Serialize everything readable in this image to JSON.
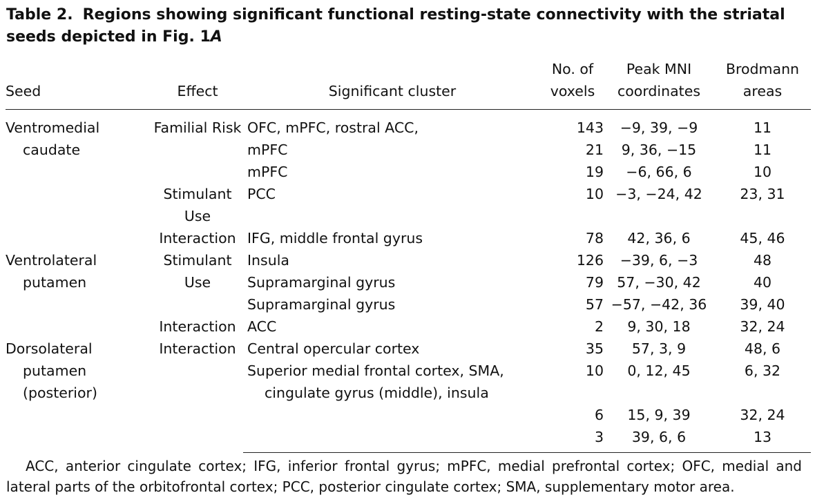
{
  "title": {
    "label": "Table 2.",
    "text": "Regions showing significant functional resting-state connectivity with the striatal seeds depicted in Fig. 1",
    "italic": "A"
  },
  "table": {
    "headers": [
      "Seed",
      "Effect",
      "Significant cluster",
      "No. of voxels",
      "Peak MNI coordinates",
      "Brodmann areas"
    ],
    "groups": [
      {
        "seed": "Ventromedial caudate",
        "effects": [
          {
            "effect": "Familial Risk",
            "clusters": [
              {
                "cluster": "OFC, mPFC, rostral ACC,",
                "voxels": 143,
                "coords": "−9, 39, −9",
                "ba": "11"
              },
              {
                "cluster": "mPFC",
                "voxels": 21,
                "coords": "9, 36, −15",
                "ba": "11"
              },
              {
                "cluster": "mPFC",
                "voxels": 19,
                "coords": "−6, 66, 6",
                "ba": "10"
              }
            ]
          },
          {
            "effect": "Stimulant Use",
            "clusters": [
              {
                "cluster": "PCC",
                "voxels": 10,
                "coords": "−3, −24, 42",
                "ba": "23, 31"
              }
            ]
          },
          {
            "effect": "Interaction",
            "clusters": [
              {
                "cluster": "IFG, middle frontal gyrus",
                "voxels": 78,
                "coords": "42, 36, 6",
                "ba": "45, 46"
              }
            ]
          }
        ]
      },
      {
        "seed": "Ventrolateral putamen",
        "effects": [
          {
            "effect": "Stimulant Use",
            "clusters": [
              {
                "cluster": "Insula",
                "voxels": 126,
                "coords": "−39, 6, −3",
                "ba": "48"
              },
              {
                "cluster": "Supramarginal gyrus",
                "voxels": 79,
                "coords": "57, −30, 42",
                "ba": "40"
              },
              {
                "cluster": "Supramarginal gyrus",
                "voxels": 57,
                "coords": "−57, −42, 36",
                "ba": "39, 40"
              }
            ]
          },
          {
            "effect": "Interaction",
            "clusters": [
              {
                "cluster": "ACC",
                "voxels": 2,
                "coords": "9, 30, 18",
                "ba": "32, 24"
              }
            ]
          }
        ]
      },
      {
        "seed": "Dorsolateral putamen (posterior)",
        "effects": [
          {
            "effect": "Interaction",
            "clusters": [
              {
                "cluster": "Central opercular cortex",
                "voxels": 35,
                "coords": "57, 3, 9",
                "ba": "48, 6"
              },
              {
                "cluster": "Superior medial frontal cortex, SMA, cingulate gyrus (middle), insula",
                "voxels": 10,
                "coords": "0, 12, 45",
                "ba": "6, 32"
              },
              {
                "voxels": 6,
                "coords": "15, 9, 39",
                "ba": "32, 24"
              },
              {
                "voxels": 3,
                "coords": "39, 6, 6",
                "ba": "13"
              }
            ]
          }
        ]
      }
    ]
  },
  "footnote": "ACC, anterior cingulate cortex; IFG, inferior frontal gyrus; mPFC, medial prefrontal cortex; OFC, medial and lateral parts of the orbitofrontal cortex; PCC, posterior cingulate cortex; SMA, supplementary motor area."
}
